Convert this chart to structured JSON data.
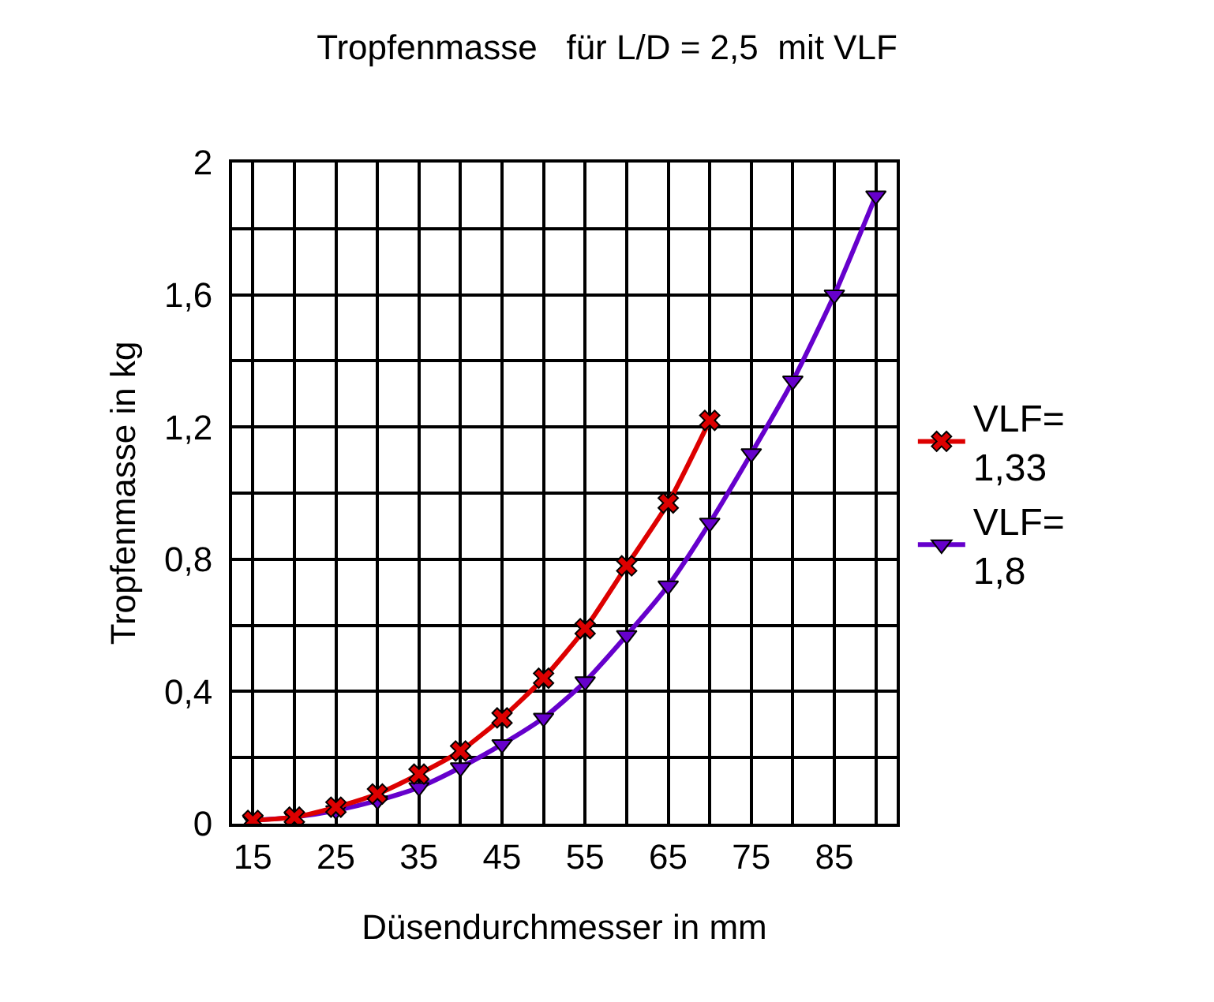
{
  "chart_data": {
    "type": "line",
    "title": "Tropfenmasse   für L/D = 2,5  mit VLF",
    "xlabel": "Düsendurchmesser in mm",
    "ylabel": "Tropfenmasse in kg",
    "xlim": [
      12.5,
      92.5
    ],
    "xticks": [
      15,
      {
        "value": 20,
        "label": null
      },
      25,
      {
        "value": 30,
        "label": null
      },
      35,
      {
        "value": 40,
        "label": null
      },
      45,
      {
        "value": 50,
        "label": null
      },
      55,
      {
        "value": 60,
        "label": null
      },
      65,
      {
        "value": 70,
        "label": null
      },
      75,
      {
        "value": 80,
        "label": null
      },
      85,
      {
        "value": 90,
        "label": null
      }
    ],
    "ylim": [
      0,
      2
    ],
    "yticks": [
      0,
      {
        "value": 0.2,
        "label": null
      },
      {
        "value": 0.4,
        "label": "0,4"
      },
      {
        "value": 0.6,
        "label": null
      },
      {
        "value": 0.8,
        "label": "0,8"
      },
      {
        "value": 1.0,
        "label": null
      },
      {
        "value": 1.2,
        "label": "1,2"
      },
      {
        "value": 1.4,
        "label": null
      },
      {
        "value": 1.6,
        "label": "1,6"
      },
      {
        "value": 1.8,
        "label": null
      },
      2
    ],
    "grid": true,
    "legend": "right",
    "series": [
      {
        "name": "VLF=\n1,33",
        "color": "#dd0000",
        "marker": "cross",
        "x": [
          15,
          20,
          25,
          30,
          35,
          40,
          45,
          50,
          55,
          60,
          65,
          70
        ],
        "values": [
          0.01,
          0.02,
          0.05,
          0.09,
          0.15,
          0.22,
          0.32,
          0.44,
          0.59,
          0.78,
          0.97,
          1.22
        ]
      },
      {
        "name": "VLF=\n1,8",
        "color": "#6600cc",
        "marker": "triangle",
        "x": [
          15,
          20,
          25,
          30,
          35,
          40,
          45,
          50,
          55,
          60,
          65,
          70,
          75,
          80,
          85,
          90
        ],
        "values": [
          0.01,
          0.02,
          0.04,
          0.07,
          0.11,
          0.17,
          0.24,
          0.32,
          0.43,
          0.57,
          0.72,
          0.91,
          1.12,
          1.34,
          1.6,
          1.9
        ]
      }
    ]
  }
}
